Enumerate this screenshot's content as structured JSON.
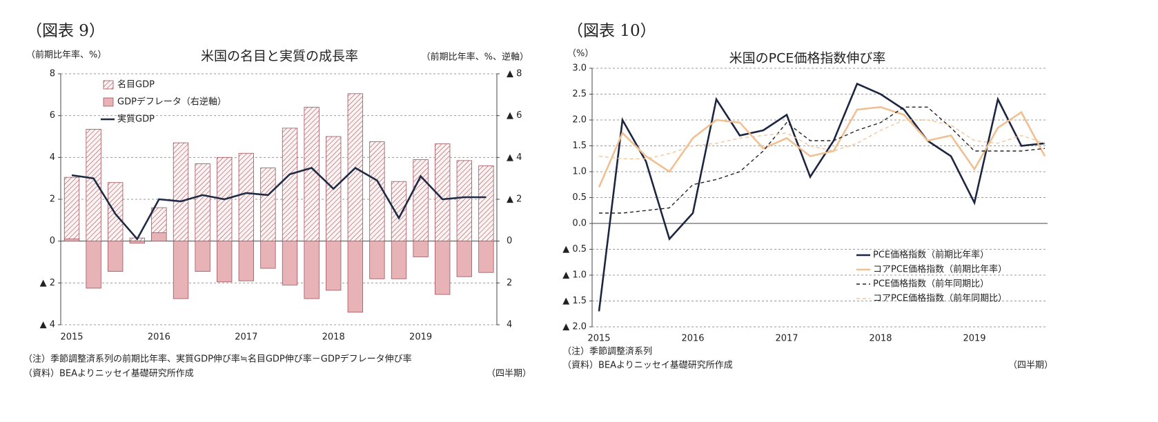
{
  "chart_data": [
    {
      "type": "bar_line",
      "figure_label": "（図表 9）",
      "title": "米国の名目と実質の成長率",
      "ylabel": "（前期比年率、%）",
      "y2label": "（前期比年率、%、逆軸）",
      "categories": [
        "2015",
        null,
        null,
        null,
        "2016",
        null,
        null,
        null,
        "2017",
        null,
        null,
        null,
        "2018",
        null,
        null,
        null,
        "2019",
        null,
        null,
        null
      ],
      "series": [
        {
          "name": "名目GDP",
          "kind": "bar",
          "pattern": "hatch",
          "color": "#a0525a",
          "values": [
            3.05,
            5.35,
            2.8,
            0.15,
            1.6,
            4.7,
            3.7,
            4.0,
            4.2,
            3.5,
            5.4,
            6.4,
            5.0,
            7.05,
            4.75,
            2.85,
            3.9,
            4.65,
            3.85,
            3.6
          ]
        },
        {
          "name": "GDPデフレータ（右逆軸）",
          "kind": "bar",
          "axis": "y2",
          "color": "#e8b3b7",
          "values": [
            -0.1,
            2.25,
            1.45,
            0.1,
            -0.4,
            2.75,
            1.45,
            1.95,
            1.9,
            1.3,
            2.1,
            2.75,
            2.35,
            3.4,
            1.8,
            1.8,
            0.75,
            2.55,
            1.7,
            1.5
          ]
        },
        {
          "name": "実質GDP",
          "kind": "line",
          "color": "#1f2a44",
          "values": [
            3.15,
            3.0,
            1.3,
            0.1,
            2.0,
            1.9,
            2.2,
            2.0,
            2.3,
            2.2,
            3.2,
            3.5,
            2.5,
            3.5,
            2.9,
            1.1,
            3.1,
            2.0,
            2.1,
            2.1
          ]
        }
      ],
      "ylim": [
        -4,
        8
      ],
      "yticks": [
        8,
        6,
        4,
        2,
        0,
        {
          "value": -2,
          "label": "▲ 2"
        },
        {
          "value": -4,
          "label": "▲ 4"
        }
      ],
      "y2lim": [
        -8,
        4
      ],
      "y2_inverted": true,
      "y2ticks": [
        {
          "value": -8,
          "label": "▲ 8"
        },
        {
          "value": -6,
          "label": "▲ 6"
        },
        {
          "value": -4,
          "label": "▲ 4"
        },
        {
          "value": -2,
          "label": "▲ 2"
        },
        0,
        2,
        4
      ],
      "grid": true,
      "notes": [
        "（注）季節調整済系列の前期比年率、実質GDP伸び率≒名目GDP伸び率－GDPデフレータ伸び率",
        "（資料）BEAよりニッセイ基礎研究所作成"
      ],
      "unit_note": "（四半期）"
    },
    {
      "type": "line",
      "figure_label": "（図表 10）",
      "title": "米国のPCE価格指数伸び率",
      "ylabel": "（%）",
      "categories": [
        "2015",
        null,
        null,
        null,
        "2016",
        null,
        null,
        null,
        "2017",
        null,
        null,
        null,
        "2018",
        null,
        null,
        null,
        "2019",
        null,
        null,
        null
      ],
      "series": [
        {
          "name": "PCE価格指数（前期比年率）",
          "color": "#1c2541",
          "dash": false,
          "values": [
            -1.7,
            2.0,
            1.2,
            -0.3,
            0.2,
            2.4,
            1.7,
            1.8,
            2.1,
            0.9,
            1.6,
            2.7,
            2.5,
            2.2,
            1.6,
            1.3,
            0.4,
            2.4,
            1.5,
            1.55
          ]
        },
        {
          "name": "コアPCE価格指数（前期比年率）",
          "color": "#f0bf92",
          "dash": false,
          "values": [
            0.7,
            1.75,
            1.3,
            1.0,
            1.65,
            2.0,
            1.95,
            1.45,
            1.65,
            1.3,
            1.4,
            2.2,
            2.25,
            2.1,
            1.6,
            1.7,
            1.05,
            1.85,
            2.15,
            1.3
          ]
        },
        {
          "name": "PCE価格指数（前年同期比）",
          "color": "#222222",
          "dash": true,
          "values": [
            0.2,
            0.2,
            0.25,
            0.3,
            0.75,
            0.85,
            1.0,
            1.4,
            1.95,
            1.6,
            1.6,
            1.8,
            1.95,
            2.25,
            2.25,
            1.85,
            1.4,
            1.4,
            1.4,
            1.45
          ]
        },
        {
          "name": "コアPCE価格指数（前年同期比）",
          "color": "#f3c59a",
          "dash": true,
          "values": [
            1.3,
            1.25,
            1.25,
            1.35,
            1.5,
            1.55,
            1.65,
            1.7,
            1.75,
            1.5,
            1.4,
            1.55,
            1.8,
            2.0,
            2.0,
            1.9,
            1.6,
            1.55,
            1.7,
            1.55
          ]
        }
      ],
      "ylim": [
        -2,
        3
      ],
      "yticks": [
        {
          "value": 3,
          "label": "3.0"
        },
        {
          "value": 2.5,
          "label": "2.5"
        },
        {
          "value": 2,
          "label": "2.0"
        },
        {
          "value": 1.5,
          "label": "1.5"
        },
        {
          "value": 1,
          "label": "1.0"
        },
        {
          "value": 0.5,
          "label": "0.5"
        },
        {
          "value": 0,
          "label": "0.0"
        },
        {
          "value": -0.5,
          "label": "▲ 0.5"
        },
        {
          "value": -1,
          "label": "▲ 1.0"
        },
        {
          "value": -1.5,
          "label": "▲ 1.5"
        },
        {
          "value": -2,
          "label": "▲ 2.0"
        }
      ],
      "grid": true,
      "notes": [
        "（注）季節調整済系列",
        "（資料）BEAよりニッセイ基礎研究所作成"
      ],
      "unit_note": "（四半期）"
    }
  ]
}
